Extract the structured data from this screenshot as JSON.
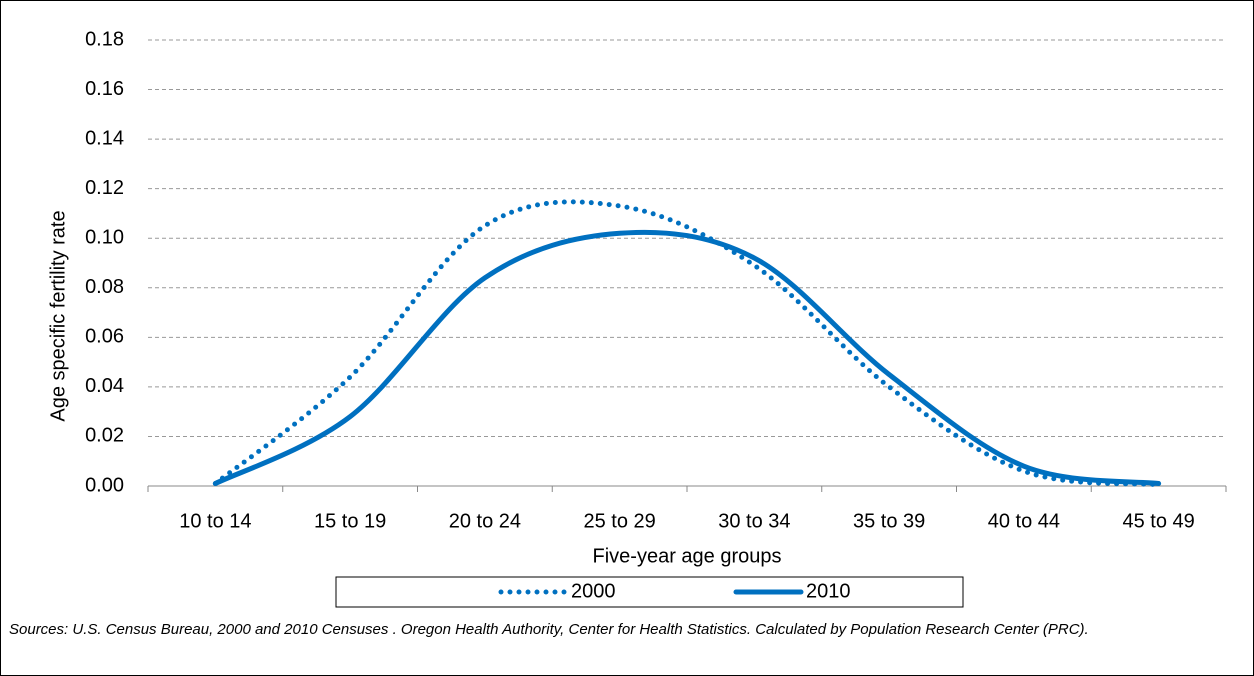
{
  "chart_data": {
    "type": "line",
    "y_label": "Age specific fertility rate",
    "x_label": "Five-year age groups",
    "categories": [
      "10 to 14",
      "15 to 19",
      "20 to 24",
      "25 to 29",
      "30 to 34",
      "35 to 39",
      "40 to 44",
      "45 to 49"
    ],
    "series": [
      {
        "name": "2000",
        "color": "#0070c0",
        "style": "dotted",
        "values": [
          0.001,
          0.044,
          0.105,
          0.113,
          0.089,
          0.04,
          0.006,
          0.0005
        ]
      },
      {
        "name": "2010",
        "color": "#0070c0",
        "style": "solid",
        "values": [
          0.001,
          0.028,
          0.084,
          0.102,
          0.092,
          0.045,
          0.008,
          0.001
        ]
      }
    ],
    "ylim": [
      0,
      0.18
    ],
    "yticks": [
      {
        "value": 0,
        "label": "0.00"
      },
      0.02,
      0.04,
      0.06,
      0.08,
      {
        "value": 0.1,
        "label": "0.10"
      },
      0.12,
      0.14,
      0.16,
      0.18
    ],
    "grid": true,
    "smooth": true,
    "legend": "bottom",
    "source": "Sources: U.S. Census Bureau, 2000 and 2010 Censuses . Oregon Health Authority, Center for Health Statistics. Calculated by Population Research Center (PRC)."
  }
}
